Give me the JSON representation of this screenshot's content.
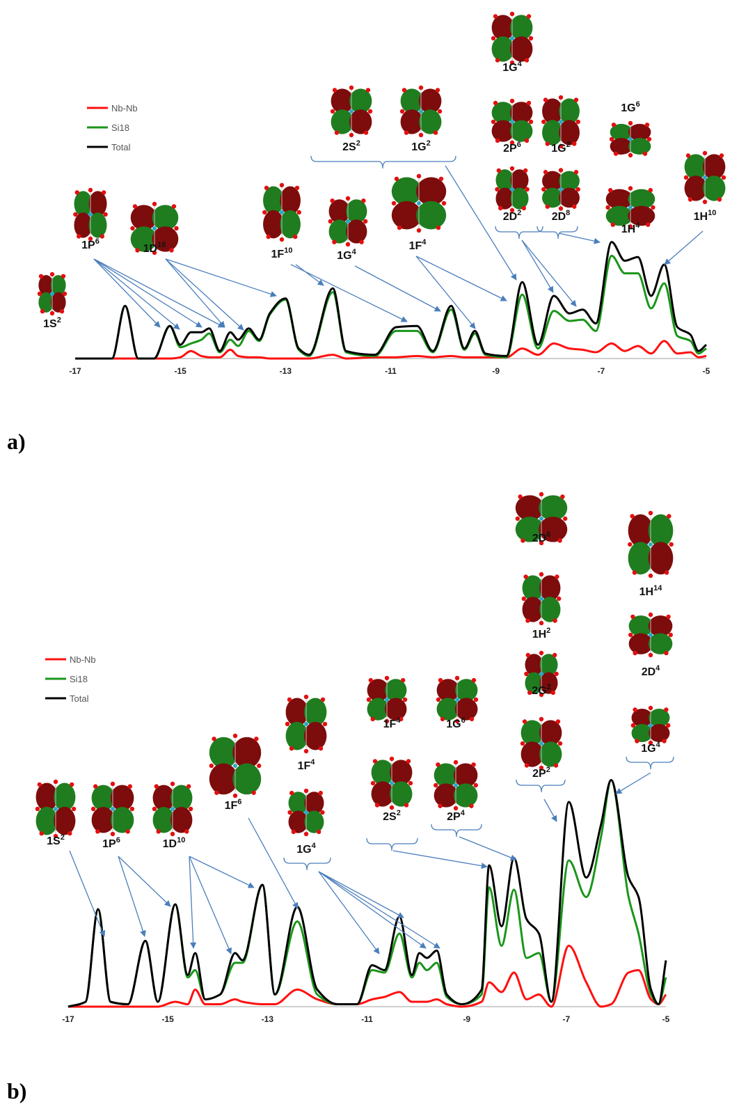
{
  "chart_data": [
    {
      "type": "line",
      "panel": "a)",
      "x": [
        -17,
        -16.3,
        -16.05,
        -15.8,
        -15.5,
        -15.2,
        -15.0,
        -14.8,
        -14.6,
        -14.45,
        -14.25,
        -14.05,
        -13.9,
        -13.7,
        -13.5,
        -13.3,
        -13.0,
        -12.75,
        -12.55,
        -12.1,
        -11.85,
        -11.3,
        -10.9,
        -10.5,
        -10.2,
        -9.85,
        -9.6,
        -9.4,
        -9.2,
        -8.8,
        -8.5,
        -8.2,
        -7.9,
        -7.6,
        -7.35,
        -7.1,
        -6.8,
        -6.55,
        -6.3,
        -6.05,
        -5.8,
        -5.55,
        -5.3,
        -5.15,
        -5
      ],
      "series": [
        {
          "name": "Nb-Nb",
          "color": "#ff1010",
          "values": [
            0,
            0,
            0,
            0,
            0,
            0,
            1,
            6,
            2,
            1,
            1,
            7,
            2,
            1,
            1,
            0,
            0,
            0,
            0,
            3,
            0,
            1,
            1,
            2,
            1,
            2,
            1,
            1,
            1,
            1,
            8,
            3,
            12,
            8,
            7,
            5,
            12,
            6,
            10,
            4,
            14,
            4,
            5,
            1,
            2
          ]
        },
        {
          "name": "Si18",
          "color": "#1a961a",
          "values": [
            0,
            0,
            42,
            0,
            0,
            26,
            9,
            12,
            15,
            20,
            5,
            15,
            10,
            22,
            14,
            35,
            47,
            7,
            2,
            53,
            5,
            2,
            22,
            22,
            5,
            39,
            7,
            20,
            3,
            1,
            51,
            8,
            38,
            30,
            31,
            22,
            82,
            68,
            68,
            40,
            60,
            18,
            14,
            4,
            8
          ]
        },
        {
          "name": "Total",
          "color": "#000000",
          "values": [
            0,
            0,
            42,
            0,
            0,
            26,
            11,
            21,
            21,
            24,
            6,
            21,
            15,
            24,
            15,
            36,
            48,
            8,
            3,
            56,
            6,
            3,
            25,
            26,
            6,
            42,
            8,
            22,
            4,
            2,
            61,
            11,
            50,
            36,
            39,
            28,
            93,
            78,
            81,
            50,
            75,
            25,
            19,
            6,
            11
          ]
        }
      ],
      "xlim": [
        -17,
        -5
      ],
      "xticks": [
        -17,
        -15,
        -13,
        -11,
        -9,
        -7,
        -5
      ],
      "ylim": [
        0,
        100
      ],
      "annotations": [
        {
          "text": "1S",
          "sup": "2"
        },
        {
          "text": "1P",
          "sup": "6"
        },
        {
          "text": "1D",
          "sup": "10"
        },
        {
          "text": "1F",
          "sup": "10"
        },
        {
          "text": "1G",
          "sup": "4"
        },
        {
          "text": "1F",
          "sup": "4"
        },
        {
          "text": "2S",
          "sup": "2"
        },
        {
          "text": "1G",
          "sup": "2"
        },
        {
          "text": "1G",
          "sup": "4"
        },
        {
          "text": "2P",
          "sup": "6"
        },
        {
          "text": "1G",
          "sup": "2"
        },
        {
          "text": "2D",
          "sup": "2"
        },
        {
          "text": "2D",
          "sup": "8"
        },
        {
          "text": "1G",
          "sup": "6"
        },
        {
          "text": "1H",
          "sup": "4"
        },
        {
          "text": "1H",
          "sup": "10"
        }
      ]
    },
    {
      "type": "line",
      "panel": "b)",
      "x": [
        -17,
        -16.65,
        -16.4,
        -16.15,
        -15.8,
        -15.45,
        -15.2,
        -14.85,
        -14.6,
        -14.45,
        -14.25,
        -13.95,
        -13.65,
        -13.5,
        -13.1,
        -12.85,
        -12.4,
        -12.0,
        -11.6,
        -11.2,
        -10.9,
        -10.65,
        -10.35,
        -10.1,
        -9.95,
        -9.8,
        -9.6,
        -9.4,
        -9.1,
        -8.7,
        -8.55,
        -8.3,
        -8.05,
        -7.8,
        -7.55,
        -7.3,
        -6.95,
        -6.6,
        -6.3,
        -6.1,
        -5.75,
        -5.55,
        -5.3,
        -5.15,
        -5
      ],
      "series": [
        {
          "name": "Nb-Nb",
          "color": "#ff1010",
          "values": [
            0,
            0,
            0,
            0,
            0,
            0,
            0,
            2,
            1,
            7,
            1,
            1,
            3,
            2,
            1,
            1,
            7,
            3,
            1,
            1,
            3,
            4,
            6,
            2,
            2,
            2,
            3,
            1,
            0,
            2,
            10,
            6,
            14,
            3,
            5,
            0,
            25,
            10,
            0,
            1,
            14,
            15,
            3,
            1,
            5
          ]
        },
        {
          "name": "Si18",
          "color": "#1a961a",
          "values": [
            0,
            2,
            40,
            2,
            1,
            27,
            2,
            42,
            12,
            15,
            3,
            5,
            18,
            18,
            50,
            5,
            35,
            5,
            1,
            1,
            15,
            14,
            30,
            12,
            18,
            15,
            18,
            4,
            1,
            5,
            49,
            25,
            48,
            20,
            22,
            2,
            60,
            45,
            70,
            93,
            45,
            30,
            5,
            1,
            12
          ]
        },
        {
          "name": "Total",
          "color": "#000000",
          "values": [
            0,
            2,
            40,
            2,
            1,
            27,
            2,
            42,
            13,
            22,
            3,
            5,
            22,
            19,
            50,
            5,
            41,
            7,
            1,
            1,
            17,
            15,
            37,
            13,
            22,
            20,
            23,
            5,
            1,
            7,
            58,
            33,
            61,
            36,
            30,
            2,
            84,
            53,
            75,
            93,
            53,
            45,
            7,
            1,
            19
          ]
        }
      ],
      "xlim": [
        -17,
        -5
      ],
      "xticks": [
        -17,
        -15,
        -13,
        -11,
        -9,
        -7,
        -5
      ],
      "ylim": [
        0,
        100
      ],
      "annotations": [
        {
          "text": "1S",
          "sup": "2"
        },
        {
          "text": "1P",
          "sup": "6"
        },
        {
          "text": "1D",
          "sup": "10"
        },
        {
          "text": "1F",
          "sup": "6"
        },
        {
          "text": "1F",
          "sup": "4"
        },
        {
          "text": "1G",
          "sup": "4"
        },
        {
          "text": "1F",
          "sup": "4"
        },
        {
          "text": "2S",
          "sup": "2"
        },
        {
          "text": "1G",
          "sup": "6"
        },
        {
          "text": "2P",
          "sup": "4"
        },
        {
          "text": "2D",
          "sup": "6"
        },
        {
          "text": "1H",
          "sup": "2"
        },
        {
          "text": "2G",
          "sup": "2"
        },
        {
          "text": "2P",
          "sup": "2"
        },
        {
          "text": "1H",
          "sup": "14"
        },
        {
          "text": "2D",
          "sup": "4"
        },
        {
          "text": "1G",
          "sup": "4"
        }
      ]
    }
  ]
}
